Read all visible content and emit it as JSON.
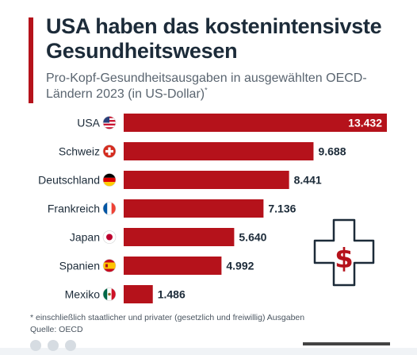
{
  "title": "USA haben das kostenintensivste Gesundheitswesen",
  "subtitle": "Pro-Kopf-Gesundheitsausgaben in ausgewählten OECD-Ländern 2023 (in US-Dollar)",
  "subtitle_marker": "*",
  "footnote": "* einschließlich staatlicher und privater (gesetzlich und freiwillig) Ausgaben",
  "source": "Quelle: OECD",
  "colors": {
    "bar": "#b5121b",
    "accent": "#b5121b",
    "text": "#1c2b39"
  },
  "icon": "medical-cross-dollar-icon",
  "chart_data": {
    "type": "bar",
    "orientation": "horizontal",
    "categories": [
      "USA",
      "Schweiz",
      "Deutschland",
      "Frankreich",
      "Japan",
      "Spanien",
      "Mexiko"
    ],
    "values": [
      13432,
      9688,
      8441,
      7136,
      5640,
      4992,
      1486
    ],
    "value_labels": [
      "13.432",
      "9.688",
      "8.441",
      "7.136",
      "5.640",
      "4.992",
      "1.486"
    ],
    "flags": [
      "flag-usa-icon",
      "flag-switzerland-icon",
      "flag-germany-icon",
      "flag-france-icon",
      "flag-japan-icon",
      "flag-spain-icon",
      "flag-mexico-icon"
    ],
    "xlim": [
      0,
      13432
    ],
    "grid": false,
    "legend": false
  }
}
